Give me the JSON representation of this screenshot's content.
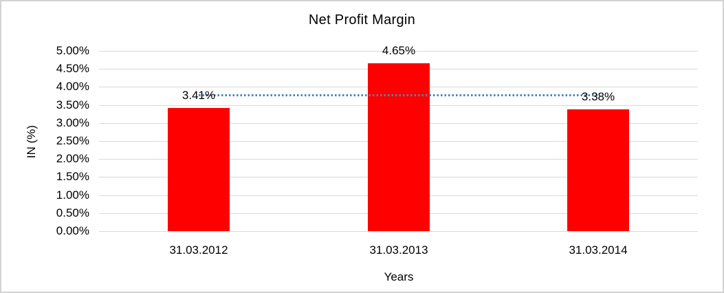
{
  "chart_data": {
    "type": "bar",
    "title": "Net Profit Margin",
    "categories": [
      "31.03.2012",
      "31.03.2013",
      "31.03.2014"
    ],
    "values": [
      3.41,
      4.65,
      3.38
    ],
    "value_labels": [
      "3.41%",
      "4.65%",
      "3.38%"
    ],
    "xlabel": "Years",
    "ylabel": "IN (%)",
    "ylim": [
      0,
      5
    ],
    "ytick_step": 0.5,
    "ytick_labels": [
      "0.00%",
      "0.50%",
      "1.00%",
      "1.50%",
      "2.00%",
      "2.50%",
      "3.00%",
      "3.50%",
      "4.00%",
      "4.50%",
      "5.00%"
    ],
    "grid": true,
    "legend": "none",
    "colors": {
      "bar": "#ff0000",
      "gridline": "#d9d9d9",
      "trendline": "#4f81bd",
      "text": "#000000",
      "frame_border": "#d2d2d2",
      "background": "#ffffff"
    },
    "trendline": {
      "type": "linear",
      "style": "dotted",
      "color": "#4f81bd",
      "start_value": 3.79,
      "end_value": 3.77
    }
  }
}
